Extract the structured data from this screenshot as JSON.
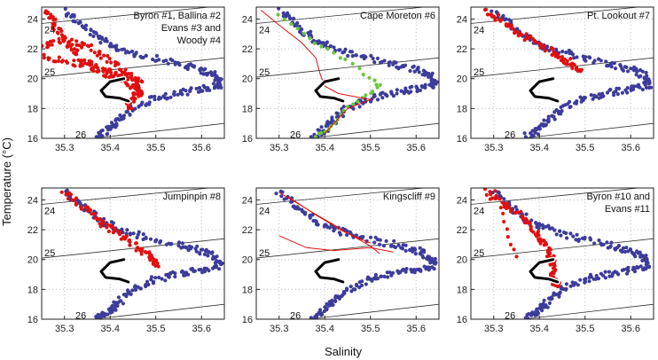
{
  "figure": {
    "ylabel": "Temperature (°C)",
    "xlabel": "Salinity"
  },
  "colors": {
    "historical": "#3c3c9a",
    "glider": "#e01010",
    "cape_moreton_glider": "#6cc43c",
    "isopycnal": "#333333",
    "frame": "#222222",
    "grid": "#bbbbbb"
  },
  "chart_data": [
    {
      "type": "scatter",
      "title": [
        "Byron #1, Ballina #2",
        "Evans #3 and",
        "Woody #4"
      ],
      "xlim": [
        35.25,
        35.65
      ],
      "ylim": [
        16,
        24.8
      ],
      "xticks": [
        35.3,
        35.4,
        35.5,
        35.6
      ],
      "yticks": [
        16,
        18,
        20,
        22,
        24
      ],
      "grid": true,
      "isopycnals": [
        {
          "label": "24",
          "y_left": 23.7,
          "y_right": 24.9
        },
        {
          "label": "25",
          "y_left": 20.1,
          "y_right": 21.4
        },
        {
          "label": "26",
          "y_left": 15.6,
          "y_right": 17.0
        }
      ],
      "series": [
        {
          "points": [
            [
              35.3,
              24.6
            ],
            [
              35.34,
              23.5
            ],
            [
              35.38,
              22.6
            ],
            [
              35.42,
              22.0
            ],
            [
              35.48,
              21.5
            ],
            [
              35.55,
              21.0
            ],
            [
              35.6,
              20.6
            ],
            [
              35.63,
              20.2
            ],
            [
              35.64,
              19.6
            ],
            [
              35.6,
              19.3
            ],
            [
              35.55,
              19.0
            ],
            [
              35.5,
              18.7
            ],
            [
              35.45,
              18.0
            ],
            [
              35.42,
              17.2
            ],
            [
              35.4,
              16.6
            ],
            [
              35.37,
              16.1
            ]
          ],
          "color": "historical",
          "style": "band"
        },
        {
          "points": [
            [
              35.26,
              24.6
            ],
            [
              35.28,
              23.5
            ],
            [
              35.3,
              22.5
            ],
            [
              35.33,
              21.5
            ],
            [
              35.37,
              20.7
            ],
            [
              35.41,
              20.0
            ],
            [
              35.45,
              19.5
            ],
            [
              35.47,
              19.0
            ]
          ],
          "color": "glider",
          "style": "band"
        },
        {
          "points": [
            [
              35.25,
              21.5
            ],
            [
              35.32,
              21.0
            ],
            [
              35.38,
              20.6
            ],
            [
              35.43,
              20.2
            ],
            [
              35.47,
              19.8
            ]
          ],
          "color": "glider",
          "style": "band"
        },
        {
          "points": [
            [
              35.25,
              22.2
            ],
            [
              35.3,
              22.6
            ],
            [
              35.36,
              22.0
            ],
            [
              35.41,
              21.0
            ],
            [
              35.45,
              20.0
            ],
            [
              35.46,
              19.0
            ],
            [
              35.44,
              18.0
            ]
          ],
          "color": "glider",
          "style": "band"
        }
      ]
    },
    {
      "type": "scatter",
      "title": [
        "Cape Moreton #6"
      ],
      "xlim": [
        35.25,
        35.65
      ],
      "ylim": [
        16,
        24.8
      ],
      "xticks": [
        35.3,
        35.4,
        35.5,
        35.6
      ],
      "yticks": [
        16,
        18,
        20,
        22,
        24
      ],
      "grid": true,
      "isopycnals": [
        {
          "label": "24",
          "y_left": 23.7,
          "y_right": 24.9
        },
        {
          "label": "25",
          "y_left": 20.1,
          "y_right": 21.4
        },
        {
          "label": "26",
          "y_left": 15.6,
          "y_right": 17.0
        }
      ],
      "series": [
        {
          "points": [
            [
              35.3,
              24.6
            ],
            [
              35.34,
              23.5
            ],
            [
              35.38,
              22.6
            ],
            [
              35.42,
              22.0
            ],
            [
              35.48,
              21.5
            ],
            [
              35.55,
              21.0
            ],
            [
              35.6,
              20.6
            ],
            [
              35.63,
              20.2
            ],
            [
              35.64,
              19.6
            ],
            [
              35.6,
              19.3
            ],
            [
              35.55,
              19.0
            ],
            [
              35.5,
              18.7
            ],
            [
              35.45,
              18.0
            ],
            [
              35.42,
              17.2
            ],
            [
              35.4,
              16.6
            ],
            [
              35.37,
              16.1
            ]
          ],
          "color": "historical",
          "style": "band"
        },
        {
          "points": [
            [
              35.3,
              24.3
            ],
            [
              35.34,
              23.3
            ],
            [
              35.38,
              22.4
            ],
            [
              35.42,
              21.7
            ],
            [
              35.46,
              21.0
            ],
            [
              35.5,
              20.0
            ],
            [
              35.52,
              19.5
            ],
            [
              35.5,
              19.0
            ],
            [
              35.47,
              18.5
            ],
            [
              35.44,
              17.8
            ],
            [
              35.42,
              17.0
            ],
            [
              35.4,
              16.5
            ],
            [
              35.38,
              16.1
            ]
          ],
          "color": "cape_moreton_glider",
          "style": "dots"
        },
        {
          "points": [
            [
              35.26,
              24.6
            ],
            [
              35.3,
              23.6
            ],
            [
              35.35,
              22.4
            ],
            [
              35.38,
              21.4
            ],
            [
              35.39,
              20.3
            ],
            [
              35.4,
              19.5
            ],
            [
              35.43,
              19.0
            ],
            [
              35.5,
              18.6
            ],
            [
              35.45,
              18.0
            ],
            [
              35.42,
              17.0
            ],
            [
              35.4,
              16.3
            ]
          ],
          "color": "glider",
          "style": "line"
        }
      ]
    },
    {
      "type": "scatter",
      "title": [
        "Pt. Lookout #7"
      ],
      "xlim": [
        35.25,
        35.65
      ],
      "ylim": [
        16,
        24.8
      ],
      "xticks": [
        35.3,
        35.4,
        35.5,
        35.6
      ],
      "yticks": [
        16,
        18,
        20,
        22,
        24
      ],
      "grid": true,
      "isopycnals": [
        {
          "label": "24",
          "y_left": 23.7,
          "y_right": 24.9
        },
        {
          "label": "25",
          "y_left": 20.1,
          "y_right": 21.4
        },
        {
          "label": "26",
          "y_left": 15.6,
          "y_right": 17.0
        }
      ],
      "series": [
        {
          "points": [
            [
              35.3,
              24.6
            ],
            [
              35.34,
              23.5
            ],
            [
              35.38,
              22.6
            ],
            [
              35.42,
              22.0
            ],
            [
              35.48,
              21.5
            ],
            [
              35.55,
              21.0
            ],
            [
              35.6,
              20.6
            ],
            [
              35.63,
              20.2
            ],
            [
              35.64,
              19.6
            ],
            [
              35.6,
              19.3
            ],
            [
              35.55,
              19.0
            ],
            [
              35.5,
              18.7
            ],
            [
              35.45,
              18.0
            ],
            [
              35.42,
              17.2
            ],
            [
              35.4,
              16.6
            ],
            [
              35.37,
              16.1
            ]
          ],
          "color": "historical",
          "style": "band"
        },
        {
          "points": [
            [
              35.28,
              24.6
            ],
            [
              35.32,
              23.8
            ],
            [
              35.36,
              23.0
            ],
            [
              35.4,
              22.3
            ],
            [
              35.44,
              21.6
            ],
            [
              35.47,
              21.0
            ],
            [
              35.49,
              20.5
            ]
          ],
          "color": "glider",
          "style": "band"
        }
      ]
    },
    {
      "type": "scatter",
      "title": [
        "Jumpinpin #8"
      ],
      "xlim": [
        35.25,
        35.65
      ],
      "ylim": [
        16,
        24.8
      ],
      "xticks": [
        35.3,
        35.4,
        35.5,
        35.6
      ],
      "yticks": [
        16,
        18,
        20,
        22,
        24
      ],
      "grid": true,
      "isopycnals": [
        {
          "label": "24",
          "y_left": 23.7,
          "y_right": 24.9
        },
        {
          "label": "25",
          "y_left": 20.1,
          "y_right": 21.4
        },
        {
          "label": "26",
          "y_left": 15.6,
          "y_right": 17.0
        }
      ],
      "series": [
        {
          "points": [
            [
              35.3,
              24.6
            ],
            [
              35.34,
              23.5
            ],
            [
              35.38,
              22.6
            ],
            [
              35.42,
              22.0
            ],
            [
              35.48,
              21.5
            ],
            [
              35.55,
              21.0
            ],
            [
              35.6,
              20.6
            ],
            [
              35.63,
              20.2
            ],
            [
              35.64,
              19.6
            ],
            [
              35.6,
              19.3
            ],
            [
              35.55,
              19.0
            ],
            [
              35.5,
              18.7
            ],
            [
              35.45,
              18.0
            ],
            [
              35.42,
              17.2
            ],
            [
              35.4,
              16.6
            ],
            [
              35.37,
              16.1
            ]
          ],
          "color": "historical",
          "style": "band"
        },
        {
          "points": [
            [
              35.3,
              24.6
            ],
            [
              35.34,
              23.5
            ],
            [
              35.38,
              22.5
            ],
            [
              35.42,
              21.6
            ],
            [
              35.46,
              20.8
            ],
            [
              35.49,
              20.2
            ],
            [
              35.5,
              19.6
            ]
          ],
          "color": "glider",
          "style": "band"
        }
      ]
    },
    {
      "type": "scatter",
      "title": [
        "Kingscliff #9"
      ],
      "xlim": [
        35.25,
        35.65
      ],
      "ylim": [
        16,
        24.8
      ],
      "xticks": [
        35.3,
        35.4,
        35.5,
        35.6
      ],
      "yticks": [
        16,
        18,
        20,
        22,
        24
      ],
      "grid": true,
      "isopycnals": [
        {
          "label": "24",
          "y_left": 23.7,
          "y_right": 24.9
        },
        {
          "label": "25",
          "y_left": 20.1,
          "y_right": 21.4
        },
        {
          "label": "26",
          "y_left": 15.6,
          "y_right": 17.0
        }
      ],
      "series": [
        {
          "points": [
            [
              35.3,
              24.6
            ],
            [
              35.34,
              23.5
            ],
            [
              35.38,
              22.6
            ],
            [
              35.42,
              22.0
            ],
            [
              35.48,
              21.5
            ],
            [
              35.55,
              21.0
            ],
            [
              35.6,
              20.6
            ],
            [
              35.63,
              20.2
            ],
            [
              35.64,
              19.6
            ],
            [
              35.6,
              19.3
            ],
            [
              35.55,
              19.0
            ],
            [
              35.5,
              18.7
            ],
            [
              35.45,
              18.0
            ],
            [
              35.42,
              17.2
            ],
            [
              35.4,
              16.6
            ],
            [
              35.37,
              16.1
            ]
          ],
          "color": "historical",
          "style": "band"
        },
        {
          "points": [
            [
              35.3,
              24.5
            ],
            [
              35.36,
              23.4
            ],
            [
              35.41,
              22.5
            ],
            [
              35.46,
              21.6
            ],
            [
              35.5,
              20.9
            ],
            [
              35.52,
              20.4
            ]
          ],
          "color": "glider",
          "style": "line"
        },
        {
          "points": [
            [
              35.32,
              24.2
            ],
            [
              35.38,
              23.0
            ],
            [
              35.44,
              21.9
            ],
            [
              35.5,
              21.1
            ]
          ],
          "color": "glider",
          "style": "line"
        },
        {
          "points": [
            [
              35.3,
              21.6
            ],
            [
              35.36,
              20.8
            ],
            [
              35.42,
              20.6
            ],
            [
              35.5,
              20.8
            ],
            [
              35.55,
              20.5
            ]
          ],
          "color": "glider",
          "style": "line"
        }
      ]
    },
    {
      "type": "scatter",
      "title": [
        "Byron #10 and",
        "Evans #11"
      ],
      "xlim": [
        35.25,
        35.65
      ],
      "ylim": [
        16,
        24.8
      ],
      "xticks": [
        35.3,
        35.4,
        35.5,
        35.6
      ],
      "yticks": [
        16,
        18,
        20,
        22,
        24
      ],
      "grid": true,
      "isopycnals": [
        {
          "label": "24",
          "y_left": 23.7,
          "y_right": 24.9
        },
        {
          "label": "25",
          "y_left": 20.1,
          "y_right": 21.4
        },
        {
          "label": "26",
          "y_left": 15.6,
          "y_right": 17.0
        }
      ],
      "series": [
        {
          "points": [
            [
              35.3,
              24.6
            ],
            [
              35.34,
              23.5
            ],
            [
              35.38,
              22.6
            ],
            [
              35.42,
              22.0
            ],
            [
              35.48,
              21.5
            ],
            [
              35.55,
              21.0
            ],
            [
              35.6,
              20.6
            ],
            [
              35.63,
              20.2
            ],
            [
              35.64,
              19.6
            ],
            [
              35.6,
              19.3
            ],
            [
              35.55,
              19.0
            ],
            [
              35.5,
              18.7
            ],
            [
              35.45,
              18.0
            ],
            [
              35.42,
              17.2
            ],
            [
              35.4,
              16.6
            ],
            [
              35.37,
              16.1
            ]
          ],
          "color": "historical",
          "style": "band"
        },
        {
          "points": [
            [
              35.28,
              24.6
            ],
            [
              35.33,
              23.6
            ],
            [
              35.37,
              22.6
            ],
            [
              35.4,
              21.6
            ],
            [
              35.42,
              20.6
            ],
            [
              35.43,
              19.6
            ],
            [
              35.43,
              18.6
            ],
            [
              35.44,
              18.2
            ]
          ],
          "color": "glider",
          "style": "band"
        },
        {
          "points": [
            [
              35.3,
              24.6
            ],
            [
              35.32,
              23.0
            ],
            [
              35.33,
              21.5
            ],
            [
              35.35,
              20.2
            ]
          ],
          "color": "glider",
          "style": "dots"
        }
      ]
    }
  ]
}
